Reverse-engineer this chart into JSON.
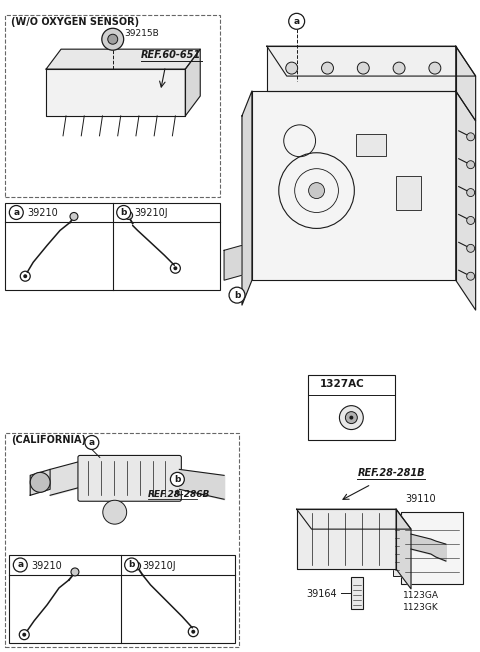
{
  "bg_color": "#ffffff",
  "line_color": "#1a1a1a",
  "dashed_color": "#666666",
  "labels": {
    "wo_oxygen": "(W/O OXYGEN SENSOR)",
    "california": "(CALIFORNIA)",
    "part_39215B": "39215B",
    "ref_60_651": "REF.60-651",
    "part_39210": "39210",
    "part_39210J": "39210J",
    "part_1327AC": "1327AC",
    "ref_28_281B": "REF.28-281B",
    "ref_28_286B": "REF.28-286B",
    "part_39110": "39110",
    "part_39164": "39164",
    "part_1123GA": "1123GA",
    "part_1123GK": "1123GK"
  }
}
